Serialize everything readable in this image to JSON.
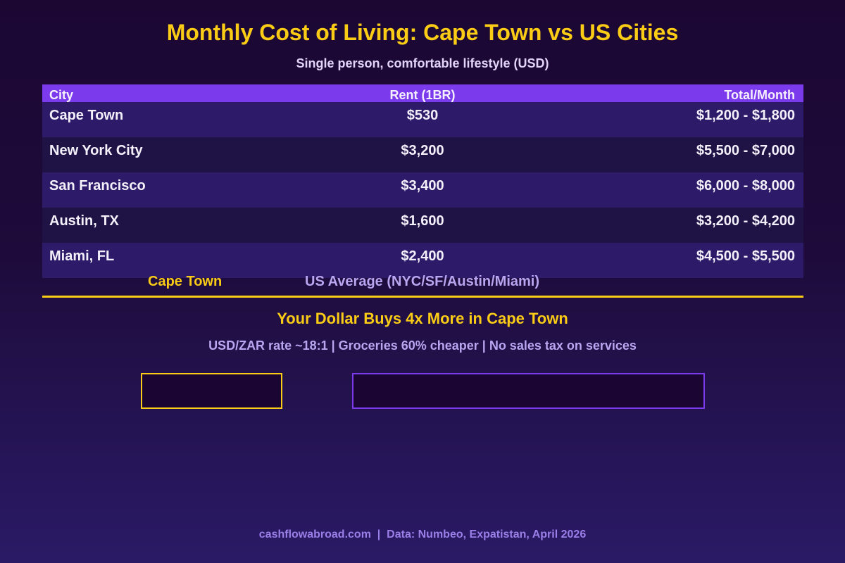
{
  "header": {
    "title": "Monthly Cost of Living: Cape Town vs US Cities",
    "subtitle": "Single person, comfortable lifestyle (USD)"
  },
  "table": {
    "columns": [
      "City",
      "Rent (1BR)",
      "Total/Month"
    ],
    "rows": [
      {
        "city": "Cape Town",
        "rent": "$530",
        "total": "$1,200 - $1,800"
      },
      {
        "city": "New York City",
        "rent": "$3,200",
        "total": "$5,500 - $7,000"
      },
      {
        "city": "San Francisco",
        "rent": "$3,400",
        "total": "$6,000 - $8,000"
      },
      {
        "city": "Austin, TX",
        "rent": "$1,600",
        "total": "$3,200 - $4,200"
      },
      {
        "city": "Miami, FL",
        "rent": "$2,400",
        "total": "$4,500 - $5,500"
      }
    ]
  },
  "comparison": {
    "legend_cape": "Cape Town",
    "legend_us": "US Average (NYC/SF/Austin/Miami)",
    "headline": "Your Dollar Buys 4x More in Cape Town",
    "facts": "USD/ZAR rate ~18:1 | Groceries 60% cheaper | No sales tax on services"
  },
  "footer": {
    "text": "cashflowabroad.com  |  Data: Numbeo, Expatistan, April 2026"
  },
  "colors": {
    "accent_gold": "#facc15",
    "accent_purple": "#7c3aed",
    "background": "#1c0733"
  }
}
